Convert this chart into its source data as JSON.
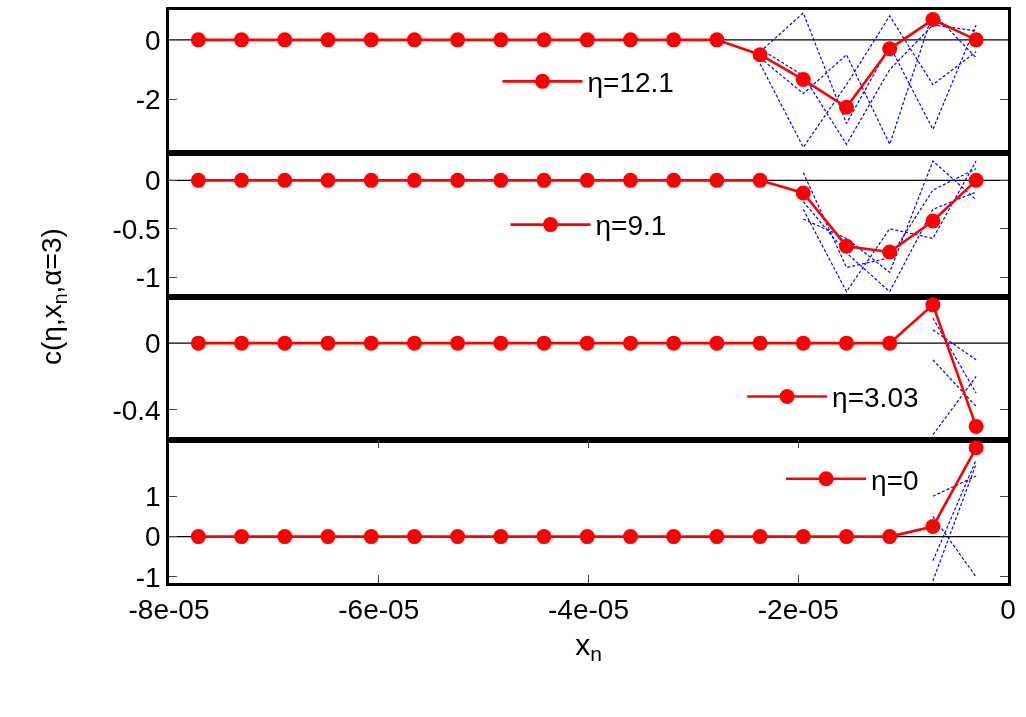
{
  "chart_data": [
    {
      "type": "line",
      "ylabel": "c(η,x$_{n}$,α=3)",
      "x": [
        -7.72e-05,
        -7.308e-05,
        -6.896e-05,
        -6.484e-05,
        -6.072e-05,
        -5.66e-05,
        -5.248e-05,
        -4.836e-05,
        -4.424e-05,
        -4.012e-05,
        -3.6e-05,
        -3.188e-05,
        -2.776e-05,
        -2.364e-05,
        -1.952e-05,
        -1.54e-05,
        -1.128e-05,
        -7.16e-06,
        -3.04e-06
      ],
      "xlim": [
        -8e-05,
        0
      ],
      "ylim": [
        -3.8,
        1
      ],
      "yticks": [
        0,
        -2
      ],
      "tick_labels": "y",
      "legend": "center",
      "ref_lines": [
        {
          "axis": "y",
          "value": 0,
          "color": "#000000"
        }
      ],
      "series": [
        {
          "color": "#0000ff",
          "line_style": "dashed",
          "marker": "none",
          "values": [
            null,
            null,
            null,
            null,
            null,
            null,
            null,
            null,
            null,
            null,
            null,
            null,
            null,
            -0.3,
            -1.2,
            -3.5,
            -1.0,
            0.5,
            0.3
          ]
        },
        {
          "color": "#0000ff",
          "line_style": "dashed",
          "marker": "none",
          "values": [
            null,
            null,
            null,
            null,
            null,
            null,
            null,
            null,
            null,
            null,
            null,
            null,
            null,
            -0.8,
            -3.6,
            -1.5,
            0.8,
            -1.5,
            -0.4
          ]
        },
        {
          "color": "#0000ff",
          "line_style": "dashed",
          "marker": "none",
          "values": [
            null,
            null,
            null,
            null,
            null,
            null,
            null,
            null,
            null,
            null,
            null,
            null,
            null,
            -0.6,
            -1.8,
            -0.5,
            -3.5,
            0.9,
            -0.6
          ]
        },
        {
          "color": "#0000ff",
          "line_style": "dashed",
          "marker": "none",
          "values": [
            null,
            null,
            null,
            null,
            null,
            null,
            null,
            null,
            null,
            null,
            null,
            null,
            null,
            -0.4,
            0.9,
            -2.8,
            -0.2,
            -3.0,
            0.5
          ]
        },
        {
          "name": "η=12.1",
          "color": "#ff0000",
          "line_style": "solid",
          "marker": "circle",
          "values": [
            0,
            0,
            0,
            0,
            0,
            0,
            0,
            0,
            0,
            0,
            0,
            0,
            0,
            -0.5,
            -1.33,
            -2.26,
            -0.3,
            0.68,
            0
          ]
        }
      ]
    },
    {
      "type": "line",
      "x": [
        -7.72e-05,
        -7.308e-05,
        -6.896e-05,
        -6.484e-05,
        -6.072e-05,
        -5.66e-05,
        -5.248e-05,
        -4.836e-05,
        -4.424e-05,
        -4.012e-05,
        -3.6e-05,
        -3.188e-05,
        -2.776e-05,
        -2.364e-05,
        -1.952e-05,
        -1.54e-05,
        -1.128e-05,
        -7.16e-06,
        -3.04e-06
      ],
      "xlim": [
        -8e-05,
        0
      ],
      "ylim": [
        -1.2,
        0.28
      ],
      "yticks": [
        0,
        -0.5,
        -1
      ],
      "tick_labels": "y",
      "legend": "center",
      "ref_lines": [
        {
          "axis": "y",
          "value": 0,
          "color": "#000000"
        }
      ],
      "series": [
        {
          "color": "#0000ff",
          "line_style": "dashed",
          "marker": "none",
          "values": [
            null,
            null,
            null,
            null,
            null,
            null,
            null,
            null,
            null,
            null,
            null,
            null,
            null,
            null,
            0.08,
            -0.9,
            -0.8,
            -0.1,
            0.12
          ]
        },
        {
          "color": "#0000ff",
          "line_style": "dashed",
          "marker": "none",
          "values": [
            null,
            null,
            null,
            null,
            null,
            null,
            null,
            null,
            null,
            null,
            null,
            null,
            null,
            null,
            -0.22,
            -0.75,
            -1.15,
            -0.3,
            -0.12
          ]
        },
        {
          "color": "#0000ff",
          "line_style": "dashed",
          "marker": "none",
          "values": [
            null,
            null,
            null,
            null,
            null,
            null,
            null,
            null,
            null,
            null,
            null,
            null,
            null,
            null,
            -0.3,
            -1.15,
            -0.5,
            -0.6,
            0.2
          ]
        },
        {
          "color": "#0000ff",
          "line_style": "dashed",
          "marker": "none",
          "values": [
            null,
            null,
            null,
            null,
            null,
            null,
            null,
            null,
            null,
            null,
            null,
            null,
            null,
            null,
            -0.4,
            -0.6,
            -0.95,
            0.2,
            -0.2
          ]
        },
        {
          "name": "η=9.1",
          "color": "#ff0000",
          "line_style": "solid",
          "marker": "circle",
          "values": [
            0,
            0,
            0,
            0,
            0,
            0,
            0,
            0,
            0,
            0,
            0,
            0,
            0,
            0,
            -0.13,
            -0.68,
            -0.74,
            -0.42,
            0
          ]
        }
      ]
    },
    {
      "type": "line",
      "x": [
        -7.72e-05,
        -7.308e-05,
        -6.896e-05,
        -6.484e-05,
        -6.072e-05,
        -5.66e-05,
        -5.248e-05,
        -4.836e-05,
        -4.424e-05,
        -4.012e-05,
        -3.6e-05,
        -3.188e-05,
        -2.776e-05,
        -2.364e-05,
        -1.952e-05,
        -1.54e-05,
        -1.128e-05,
        -7.16e-06,
        -3.04e-06
      ],
      "xlim": [
        -8e-05,
        0
      ],
      "ylim": [
        -0.58,
        0.28
      ],
      "yticks": [
        0,
        -0.4
      ],
      "tick_labels": "y",
      "legend": "right",
      "ref_lines": [
        {
          "axis": "y",
          "value": 0,
          "color": "#000000"
        }
      ],
      "series": [
        {
          "color": "#0000ff",
          "line_style": "dashed",
          "marker": "none",
          "values": [
            null,
            null,
            null,
            null,
            null,
            null,
            null,
            null,
            null,
            null,
            null,
            null,
            null,
            null,
            null,
            null,
            null,
            0.15,
            -0.3
          ]
        },
        {
          "color": "#0000ff",
          "line_style": "dashed",
          "marker": "none",
          "values": [
            null,
            null,
            null,
            null,
            null,
            null,
            null,
            null,
            null,
            null,
            null,
            null,
            null,
            null,
            null,
            null,
            null,
            -0.1,
            -0.38
          ]
        },
        {
          "color": "#0000ff",
          "line_style": "dashed",
          "marker": "none",
          "values": [
            null,
            null,
            null,
            null,
            null,
            null,
            null,
            null,
            null,
            null,
            null,
            null,
            null,
            null,
            null,
            null,
            null,
            -0.55,
            -0.2
          ]
        },
        {
          "color": "#0000ff",
          "line_style": "dashed",
          "marker": "none",
          "values": [
            null,
            null,
            null,
            null,
            null,
            null,
            null,
            null,
            null,
            null,
            null,
            null,
            null,
            null,
            null,
            null,
            null,
            0.08,
            -0.1
          ]
        },
        {
          "name": "η=3.03",
          "color": "#ff0000",
          "line_style": "solid",
          "marker": "circle",
          "values": [
            0,
            0,
            0,
            0,
            0,
            0,
            0,
            0,
            0,
            0,
            0,
            0,
            0,
            0,
            0,
            0,
            0,
            0.23,
            -0.5
          ]
        }
      ]
    },
    {
      "type": "line",
      "xlabel": "x$_{n}$",
      "x": [
        -7.72e-05,
        -7.308e-05,
        -6.896e-05,
        -6.484e-05,
        -6.072e-05,
        -5.66e-05,
        -5.248e-05,
        -4.836e-05,
        -4.424e-05,
        -4.012e-05,
        -3.6e-05,
        -3.188e-05,
        -2.776e-05,
        -2.364e-05,
        -1.952e-05,
        -1.54e-05,
        -1.128e-05,
        -7.16e-06,
        -3.04e-06
      ],
      "xlim": [
        -8e-05,
        0
      ],
      "xticks": [
        {
          "value": -8e-05,
          "label": "-8e-05"
        },
        {
          "value": -6e-05,
          "label": "-6e-05"
        },
        {
          "value": -4e-05,
          "label": "-4e-05"
        },
        {
          "value": -2e-05,
          "label": "-2e-05"
        },
        0
      ],
      "ylim": [
        -1.15,
        2.4
      ],
      "yticks": [
        1,
        0,
        -1
      ],
      "legend": "top right",
      "ref_lines": [
        {
          "axis": "y",
          "value": 0,
          "color": "#000000"
        }
      ],
      "series": [
        {
          "color": "#0000ff",
          "line_style": "dashed",
          "marker": "none",
          "values": [
            null,
            null,
            null,
            null,
            null,
            null,
            null,
            null,
            null,
            null,
            null,
            null,
            null,
            null,
            null,
            null,
            null,
            -1.1,
            1.8
          ]
        },
        {
          "color": "#0000ff",
          "line_style": "dashed",
          "marker": "none",
          "values": [
            null,
            null,
            null,
            null,
            null,
            null,
            null,
            null,
            null,
            null,
            null,
            null,
            null,
            null,
            null,
            null,
            null,
            1.0,
            1.5
          ]
        },
        {
          "color": "#0000ff",
          "line_style": "dashed",
          "marker": "none",
          "values": [
            null,
            null,
            null,
            null,
            null,
            null,
            null,
            null,
            null,
            null,
            null,
            null,
            null,
            null,
            null,
            null,
            null,
            -0.6,
            1.9
          ]
        },
        {
          "color": "#0000ff",
          "line_style": "dashed",
          "marker": "none",
          "values": [
            null,
            null,
            null,
            null,
            null,
            null,
            null,
            null,
            null,
            null,
            null,
            null,
            null,
            null,
            null,
            null,
            null,
            0.5,
            -1.0
          ]
        },
        {
          "name": "η=0",
          "color": "#ff0000",
          "line_style": "solid",
          "marker": "circle",
          "values": [
            0,
            0,
            0,
            0,
            0,
            0,
            0,
            0,
            0,
            0,
            0,
            0,
            0,
            0,
            0,
            0,
            0,
            0.25,
            2.2
          ]
        }
      ]
    }
  ]
}
